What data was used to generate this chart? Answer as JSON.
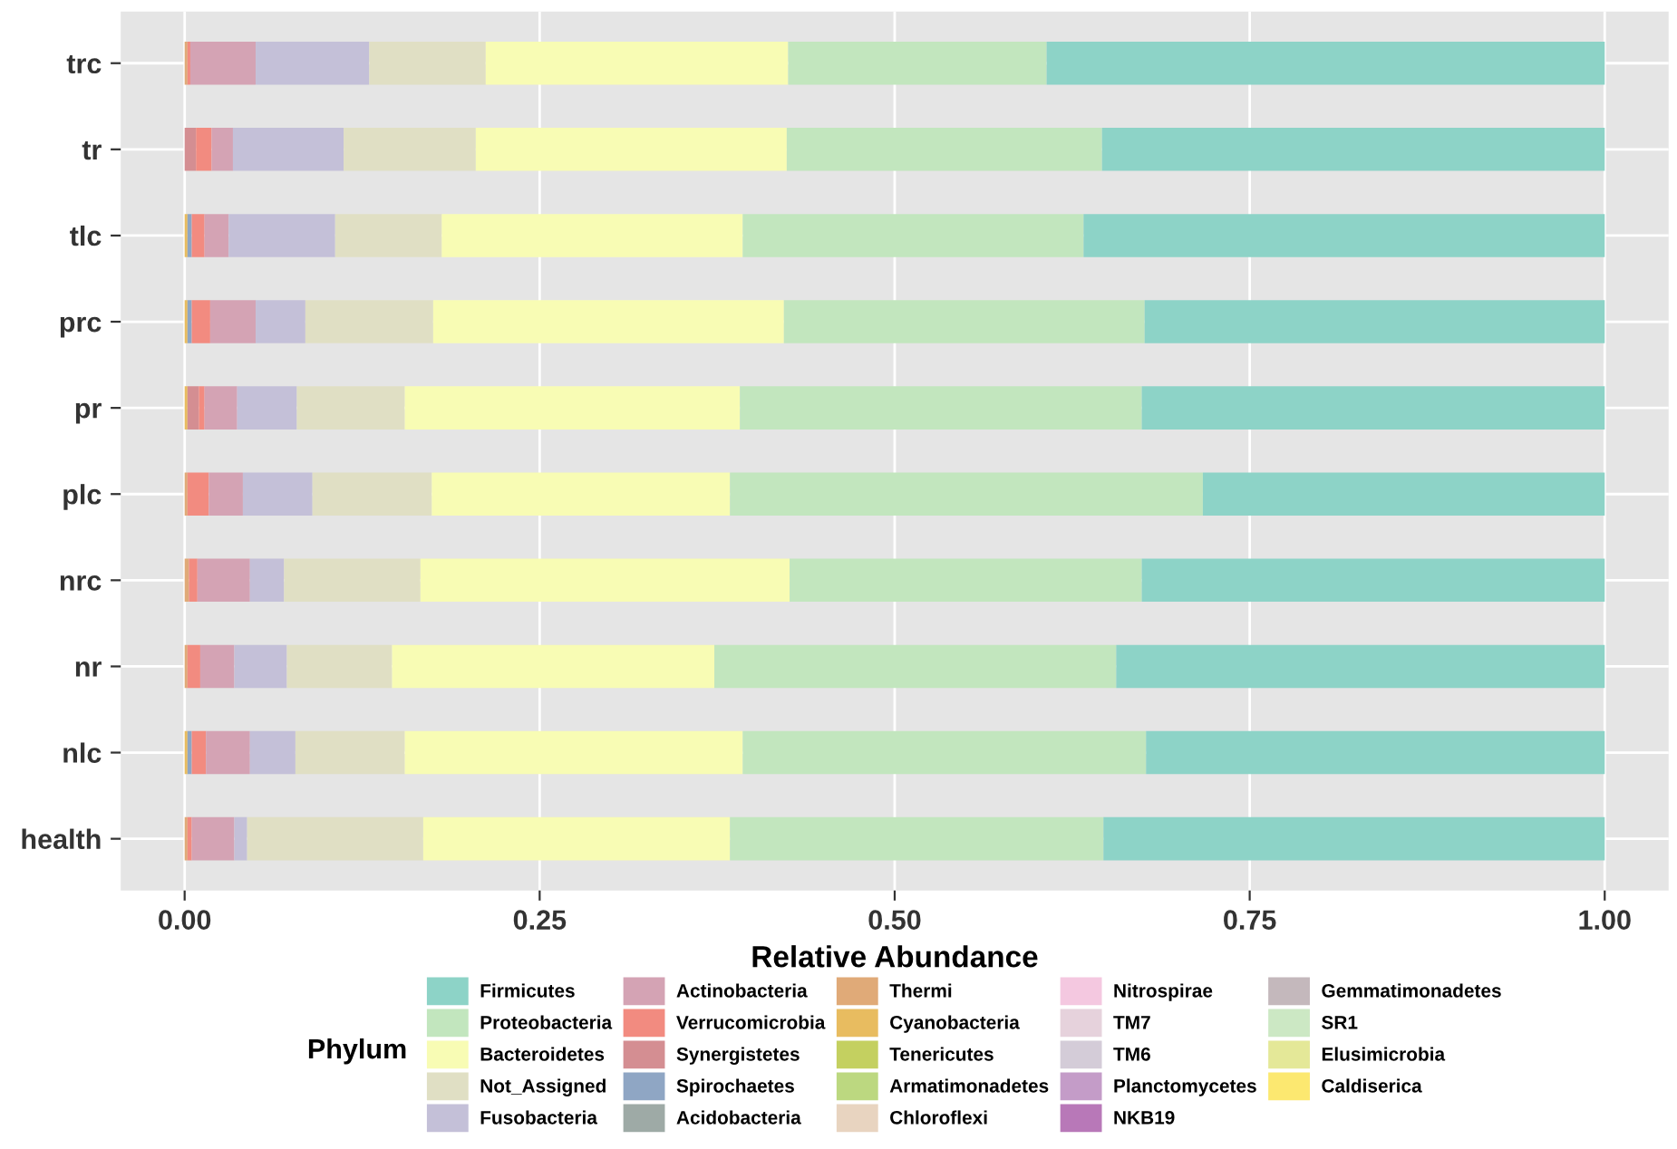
{
  "chart_data": {
    "type": "bar",
    "orientation": "horizontal",
    "stacked": true,
    "categories": [
      "trc",
      "tr",
      "tlc",
      "prc",
      "pr",
      "plc",
      "nrc",
      "nr",
      "nlc",
      "health"
    ],
    "xlabel": "Relative Abundance",
    "legend_title": "Phylum",
    "xlim": [
      -0.045,
      1.045
    ],
    "xticks": [
      {
        "value": 0,
        "label": "0.00"
      },
      {
        "value": 0.25,
        "label": "0.25"
      },
      {
        "value": 0.5,
        "label": "0.50"
      },
      {
        "value": 0.75,
        "label": "0.75"
      },
      {
        "value": 1,
        "label": "1.00"
      }
    ],
    "grid": true,
    "legend": "bottom",
    "series": [
      {
        "name": "Caldiserica",
        "color": "#fce870",
        "values": [
          0,
          0,
          0,
          0,
          0,
          0,
          0,
          0,
          0,
          0
        ]
      },
      {
        "name": "Elusimicrobia",
        "color": "#e4e898",
        "values": [
          0,
          0,
          0,
          0,
          0,
          0,
          0,
          0,
          0,
          0
        ]
      },
      {
        "name": "SR1",
        "color": "#cce8c4",
        "values": [
          0,
          0,
          0,
          0,
          0,
          0,
          0,
          0,
          0,
          0
        ]
      },
      {
        "name": "Gemmatimonadetes",
        "color": "#c4b8bc",
        "values": [
          0,
          0,
          0,
          0,
          0,
          0,
          0,
          0,
          0,
          0
        ]
      },
      {
        "name": "NKB19",
        "color": "#b878b8",
        "values": [
          0,
          0,
          0,
          0,
          0,
          0,
          0,
          0,
          0,
          0
        ]
      },
      {
        "name": "Planctomycetes",
        "color": "#c49cc8",
        "values": [
          0,
          0,
          0,
          0,
          0,
          0,
          0,
          0,
          0,
          0
        ]
      },
      {
        "name": "TM6",
        "color": "#d4ccd8",
        "values": [
          0,
          0,
          0,
          0,
          0,
          0,
          0,
          0,
          0,
          0
        ]
      },
      {
        "name": "TM7",
        "color": "#e6d2dc",
        "values": [
          0,
          0,
          0,
          0,
          0,
          0,
          0,
          0,
          0,
          0
        ]
      },
      {
        "name": "Nitrospirae",
        "color": "#f4c8e0",
        "values": [
          0,
          0,
          0,
          0,
          0,
          0,
          0,
          0,
          0,
          0
        ]
      },
      {
        "name": "Chloroflexi",
        "color": "#e8d4c0",
        "values": [
          0,
          0,
          0,
          0,
          0,
          0,
          0,
          0,
          0,
          0
        ]
      },
      {
        "name": "Armatimonadetes",
        "color": "#bcd880",
        "values": [
          0,
          0,
          0,
          0,
          0,
          0,
          0,
          0,
          0,
          0
        ]
      },
      {
        "name": "Tenericutes",
        "color": "#c4d060",
        "values": [
          0,
          0,
          0,
          0,
          0,
          0,
          0,
          0,
          0,
          0
        ]
      },
      {
        "name": "Cyanobacteria",
        "color": "#e8bc60",
        "values": [
          0,
          0,
          0.002,
          0.002,
          0.002,
          0,
          0,
          0,
          0.002,
          0
        ]
      },
      {
        "name": "Thermi",
        "color": "#e0aa78",
        "values": [
          0.002,
          0,
          0,
          0,
          0,
          0.002,
          0.003,
          0.002,
          0,
          0.002
        ]
      },
      {
        "name": "Acidobacteria",
        "color": "#9eaaa6",
        "values": [
          0,
          0,
          0,
          0,
          0,
          0,
          0,
          0,
          0,
          0
        ]
      },
      {
        "name": "Spirochaetes",
        "color": "#8fa6c4",
        "values": [
          0,
          0,
          0.003,
          0.003,
          0,
          0,
          0,
          0,
          0.003,
          0
        ]
      },
      {
        "name": "Synergistetes",
        "color": "#d48e92",
        "values": [
          0,
          0.008,
          0,
          0,
          0.008,
          0,
          0,
          0,
          0,
          0
        ]
      },
      {
        "name": "Verrucomicrobia",
        "color": "#f28b80",
        "values": [
          0.002,
          0.011,
          0.009,
          0.013,
          0.004,
          0.015,
          0.006,
          0.009,
          0.01,
          0.003
        ]
      },
      {
        "name": "Actinobacteria",
        "color": "#d4a3b4",
        "values": [
          0.046,
          0.015,
          0.017,
          0.032,
          0.023,
          0.024,
          0.037,
          0.024,
          0.031,
          0.03
        ]
      },
      {
        "name": "Fusobacteria",
        "color": "#c4c0d8",
        "values": [
          0.08,
          0.078,
          0.075,
          0.035,
          0.042,
          0.049,
          0.024,
          0.037,
          0.032,
          0.009
        ]
      },
      {
        "name": "Not_Assigned",
        "color": "#e0dfc4",
        "values": [
          0.082,
          0.093,
          0.075,
          0.09,
          0.076,
          0.084,
          0.096,
          0.074,
          0.077,
          0.124
        ]
      },
      {
        "name": "Bacteroidetes",
        "color": "#f8fcb4",
        "values": [
          0.213,
          0.219,
          0.212,
          0.247,
          0.236,
          0.21,
          0.26,
          0.227,
          0.238,
          0.216
        ]
      },
      {
        "name": "Proteobacteria",
        "color": "#c2e6be",
        "values": [
          0.182,
          0.222,
          0.24,
          0.254,
          0.283,
          0.333,
          0.248,
          0.283,
          0.284,
          0.263
        ]
      },
      {
        "name": "Firmicutes",
        "color": "#8dd3c7",
        "values": [
          0.393,
          0.354,
          0.367,
          0.324,
          0.326,
          0.283,
          0.326,
          0.344,
          0.323,
          0.353
        ]
      }
    ]
  }
}
